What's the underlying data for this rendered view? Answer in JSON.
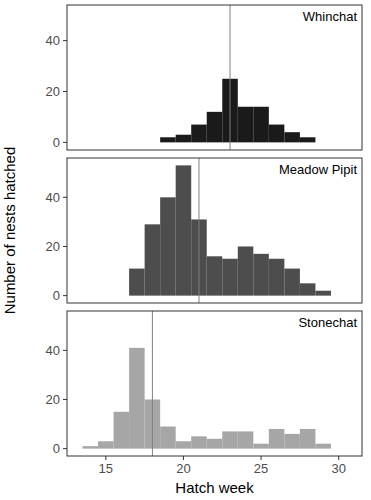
{
  "axis_labels": {
    "x": "Hatch week",
    "y": "Number of nests hatched"
  },
  "chart_data": [
    {
      "type": "histogram",
      "title": "Whinchat",
      "color": "#1a1a1a",
      "bins": [
        18.5,
        19.5,
        20.5,
        21.5,
        22.5,
        23.5,
        24.5,
        25.5,
        26.5,
        27.5,
        28.5
      ],
      "values": [
        2,
        3,
        7,
        12,
        25,
        14,
        14,
        7,
        4,
        2
      ],
      "vline": 23,
      "xlim": [
        12.5,
        31.5
      ],
      "xticks": [
        15,
        20,
        25,
        30
      ],
      "ylim": [
        -3,
        54
      ],
      "yticks": [
        0,
        20,
        40
      ],
      "tick_labels": "y"
    },
    {
      "type": "histogram",
      "title": "Meadow Pipit",
      "color": "#4d4d4d",
      "bins": [
        16.5,
        17.5,
        18.5,
        19.5,
        20.5,
        21.5,
        22.5,
        23.5,
        24.5,
        25.5,
        26.5,
        27.5,
        28.5,
        29.5
      ],
      "values": [
        11,
        29,
        40,
        53,
        31,
        16,
        15,
        20,
        17,
        15,
        11,
        5,
        2
      ],
      "vline": 21,
      "xlim": [
        12.5,
        31.5
      ],
      "xticks": [
        15,
        20,
        25,
        30
      ],
      "ylim": [
        -3,
        56
      ],
      "yticks": [
        0,
        20,
        40
      ],
      "tick_labels": "y"
    },
    {
      "type": "histogram",
      "title": "Stonechat",
      "color": "#a6a6a6",
      "bins": [
        13.5,
        14.5,
        15.5,
        16.5,
        17.5,
        18.5,
        19.5,
        20.5,
        21.5,
        22.5,
        23.5,
        24.5,
        25.5,
        26.5,
        27.5,
        28.5,
        29.5
      ],
      "values": [
        1,
        3,
        15,
        41,
        20,
        9,
        3,
        5,
        4,
        7,
        7,
        2,
        8,
        6,
        8,
        2
      ],
      "vline": 18,
      "xlim": [
        12.5,
        31.5
      ],
      "xticks": [
        15,
        20,
        25,
        30
      ],
      "ylim": [
        -3,
        56
      ],
      "yticks": [
        0,
        20,
        40
      ]
    }
  ]
}
